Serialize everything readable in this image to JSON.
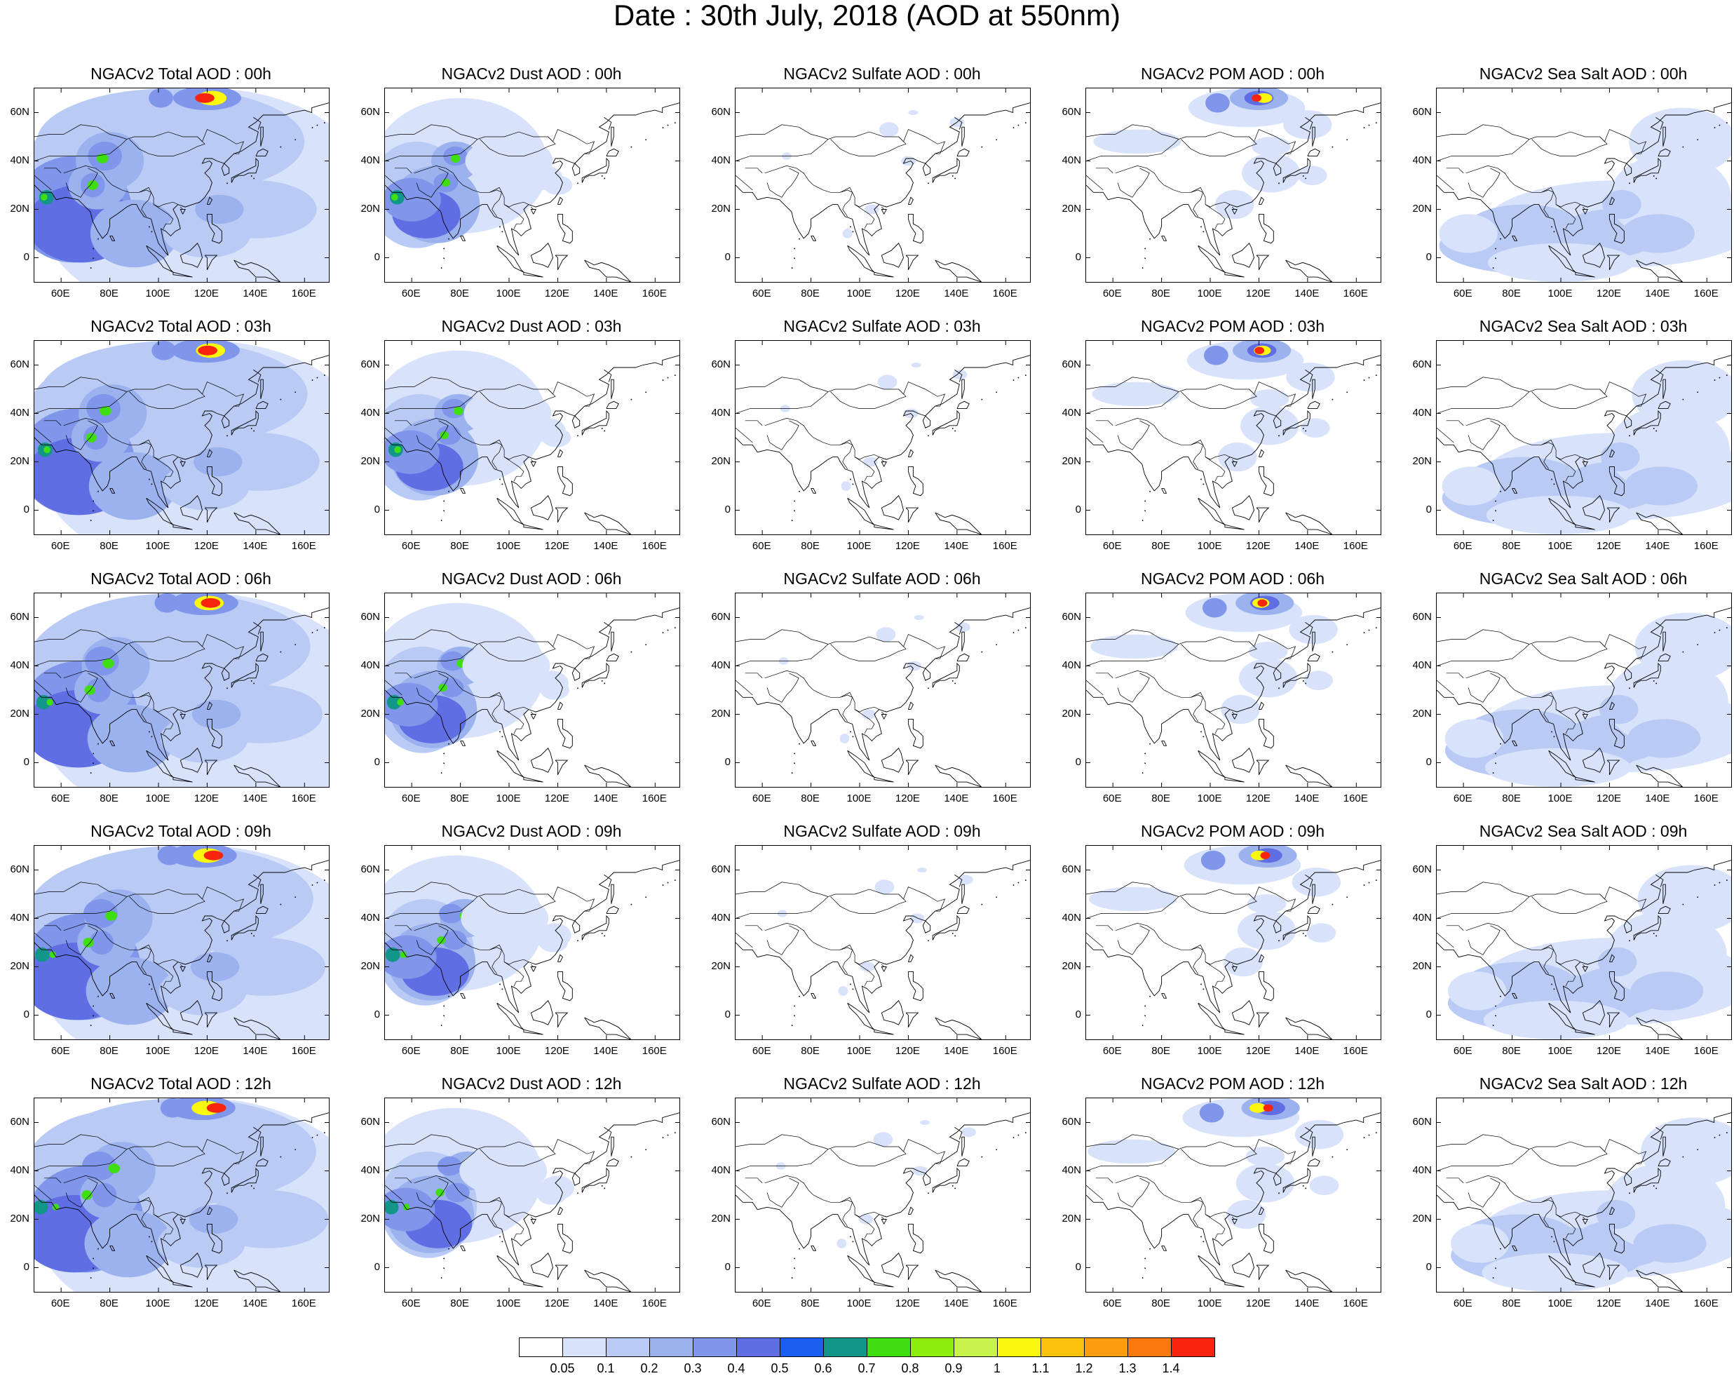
{
  "figure": {
    "title": "Date : 30th July, 2018 (AOD at 550nm)"
  },
  "axes": {
    "lat_ticks": [
      "60N",
      "40N",
      "20N",
      "0"
    ],
    "lon_ticks": [
      "60E",
      "80E",
      "100E",
      "120E",
      "140E",
      "160E"
    ]
  },
  "panels": [
    {
      "title": "NGACv2 Total AOD : 00h",
      "species": "total"
    },
    {
      "title": "NGACv2 Dust AOD : 00h",
      "species": "dust"
    },
    {
      "title": "NGACv2 Sulfate AOD : 00h",
      "species": "sulfate"
    },
    {
      "title": "NGACv2 POM AOD : 00h",
      "species": "pom"
    },
    {
      "title": "NGACv2 Sea Salt AOD : 00h",
      "species": "seasalt"
    },
    {
      "title": "NGACv2 Total AOD : 03h",
      "species": "total"
    },
    {
      "title": "NGACv2 Dust AOD : 03h",
      "species": "dust"
    },
    {
      "title": "NGACv2 Sulfate AOD : 03h",
      "species": "sulfate"
    },
    {
      "title": "NGACv2 POM AOD : 03h",
      "species": "pom"
    },
    {
      "title": "NGACv2 Sea Salt AOD : 03h",
      "species": "seasalt"
    },
    {
      "title": "NGACv2 Total AOD : 06h",
      "species": "total"
    },
    {
      "title": "NGACv2 Dust AOD : 06h",
      "species": "dust"
    },
    {
      "title": "NGACv2 Sulfate AOD : 06h",
      "species": "sulfate"
    },
    {
      "title": "NGACv2 POM AOD : 06h",
      "species": "pom"
    },
    {
      "title": "NGACv2 Sea Salt AOD : 06h",
      "species": "seasalt"
    },
    {
      "title": "NGACv2 Total AOD : 09h",
      "species": "total"
    },
    {
      "title": "NGACv2 Dust AOD : 09h",
      "species": "dust"
    },
    {
      "title": "NGACv2 Sulfate AOD : 09h",
      "species": "sulfate"
    },
    {
      "title": "NGACv2 POM AOD : 09h",
      "species": "pom"
    },
    {
      "title": "NGACv2 Sea Salt  AOD : 09h",
      "species": "seasalt"
    },
    {
      "title": "NGACv2 Total AOD  : 12h",
      "species": "total"
    },
    {
      "title": "NGACv2 Dust AOD : 12h",
      "species": "dust"
    },
    {
      "title": "NGACv2 Sulfate AOD : 12h",
      "species": "sulfate"
    },
    {
      "title": "NGACv2 POM  AOD : 12h",
      "species": "pom"
    },
    {
      "title": "NGACv2 Sea Salt  AOD : 12h",
      "species": "seasalt"
    }
  ],
  "colorbar": {
    "labels": [
      "0.05",
      "0.1",
      "0.2",
      "0.3",
      "0.4",
      "0.5",
      "0.6",
      "0.7",
      "0.8",
      "0.9",
      "1",
      "1.1",
      "1.2",
      "1.3",
      "1.4"
    ],
    "colors": [
      "#ffffff",
      "#d8e2fa",
      "#b9cbf5",
      "#9cb2ef",
      "#7f96ea",
      "#5f6ee3",
      "#1a5ff0",
      "#12968a",
      "#3fde10",
      "#8dee0e",
      "#c8f24c",
      "#fbf80e",
      "#fcc20e",
      "#fb9d0e",
      "#f8790e",
      "#f7250e"
    ]
  }
}
